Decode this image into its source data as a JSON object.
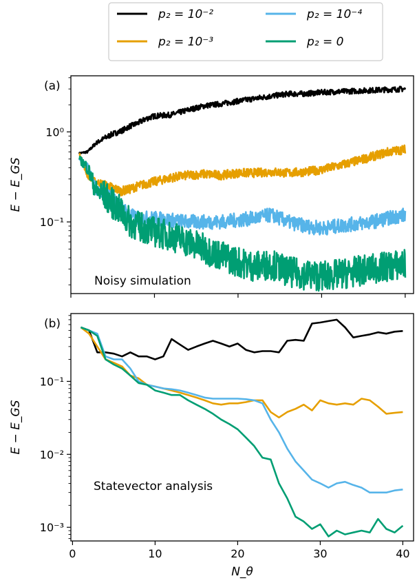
{
  "legend": {
    "entries": [
      {
        "label": "p₂ = 10⁻²",
        "color": "#000000"
      },
      {
        "label": "p₂ = 10⁻³",
        "color": "#E69F00"
      },
      {
        "label": "p₂ = 10⁻⁴",
        "color": "#56B4E9"
      },
      {
        "label": "p₂ = 0",
        "color": "#009E73"
      }
    ]
  },
  "chart_data": [
    {
      "type": "line",
      "panel_label": "(a)",
      "annotation": "Noisy simulation",
      "ylabel": "E − E_GS",
      "yscale": "log",
      "ylim": [
        0.016,
        4.2
      ],
      "xlim": [
        0,
        41
      ],
      "yticks": [
        {
          "value": 1,
          "label": "10⁰"
        },
        {
          "value": 0.1,
          "label": "10⁻¹"
        }
      ],
      "series": [
        {
          "name": "p₂ = 10⁻²",
          "color": "#000000",
          "x": [
            1,
            2,
            3,
            4,
            5,
            6,
            7,
            8,
            9,
            10,
            12,
            14,
            16,
            18,
            20,
            22,
            24,
            26,
            28,
            30,
            32,
            34,
            36,
            38,
            40
          ],
          "values": [
            0.58,
            0.6,
            0.75,
            0.85,
            0.95,
            1.02,
            1.15,
            1.25,
            1.4,
            1.5,
            1.55,
            1.75,
            1.95,
            2.05,
            2.2,
            2.35,
            2.5,
            2.65,
            2.65,
            2.75,
            2.8,
            2.85,
            2.9,
            2.95,
            3.0
          ]
        },
        {
          "name": "p₂ = 10⁻³",
          "color": "#E69F00",
          "x": [
            1,
            2,
            3,
            4,
            5,
            6,
            7,
            8,
            10,
            12,
            14,
            16,
            18,
            20,
            22,
            24,
            26,
            28,
            30,
            32,
            34,
            36,
            38,
            40
          ],
          "values": [
            0.58,
            0.32,
            0.28,
            0.26,
            0.24,
            0.22,
            0.23,
            0.25,
            0.28,
            0.31,
            0.33,
            0.34,
            0.33,
            0.35,
            0.35,
            0.36,
            0.35,
            0.36,
            0.38,
            0.42,
            0.47,
            0.53,
            0.6,
            0.64
          ]
        },
        {
          "name": "p₂ = 10⁻⁴",
          "color": "#56B4E9",
          "x": [
            1,
            2,
            3,
            4,
            5,
            6,
            7,
            8,
            10,
            12,
            14,
            16,
            18,
            20,
            22,
            24,
            26,
            28,
            30,
            32,
            34,
            36,
            38,
            40
          ],
          "values": [
            0.5,
            0.42,
            0.23,
            0.21,
            0.18,
            0.15,
            0.12,
            0.11,
            0.11,
            0.105,
            0.1,
            0.1,
            0.1,
            0.105,
            0.11,
            0.12,
            0.1,
            0.09,
            0.085,
            0.09,
            0.095,
            0.1,
            0.11,
            0.12
          ]
        },
        {
          "name": "p₂ = 0",
          "color": "#009E73",
          "x": [
            1,
            2,
            3,
            4,
            5,
            6,
            7,
            8,
            10,
            12,
            14,
            16,
            18,
            20,
            22,
            24,
            26,
            28,
            30,
            32,
            34,
            36,
            38,
            40
          ],
          "values": [
            0.5,
            0.4,
            0.22,
            0.2,
            0.16,
            0.13,
            0.1,
            0.09,
            0.078,
            0.07,
            0.06,
            0.05,
            0.042,
            0.036,
            0.032,
            0.034,
            0.028,
            0.026,
            0.025,
            0.026,
            0.028,
            0.03,
            0.032,
            0.034
          ]
        }
      ]
    },
    {
      "type": "line",
      "panel_label": "(b)",
      "annotation": "Statevector analysis",
      "xlabel": "N_θ",
      "ylabel": "E − E_GS",
      "yscale": "log",
      "ylim": [
        0.00065,
        0.85
      ],
      "xlim": [
        -0.2,
        41.3
      ],
      "xticks": [
        0,
        10,
        20,
        30,
        40
      ],
      "yticks": [
        {
          "value": 0.1,
          "label": "10⁻¹"
        },
        {
          "value": 0.01,
          "label": "10⁻²"
        },
        {
          "value": 0.001,
          "label": "10⁻³"
        }
      ],
      "series": [
        {
          "name": "p₂ = 10⁻²",
          "color": "#000000",
          "x": [
            1,
            2,
            3,
            4,
            5,
            6,
            7,
            8,
            9,
            10,
            11,
            12,
            13,
            14,
            15,
            16,
            17,
            18,
            19,
            20,
            21,
            22,
            23,
            24,
            25,
            26,
            27,
            28,
            29,
            30,
            31,
            32,
            33,
            34,
            35,
            36,
            37,
            38,
            39,
            40
          ],
          "values": [
            0.55,
            0.5,
            0.25,
            0.25,
            0.24,
            0.22,
            0.25,
            0.22,
            0.22,
            0.2,
            0.22,
            0.38,
            0.32,
            0.27,
            0.3,
            0.33,
            0.36,
            0.33,
            0.3,
            0.33,
            0.27,
            0.25,
            0.26,
            0.26,
            0.25,
            0.36,
            0.37,
            0.36,
            0.62,
            0.64,
            0.67,
            0.7,
            0.55,
            0.4,
            0.42,
            0.44,
            0.47,
            0.45,
            0.48,
            0.49
          ]
        },
        {
          "name": "p₂ = 10⁻³",
          "color": "#E69F00",
          "x": [
            1,
            2,
            3,
            4,
            5,
            6,
            7,
            8,
            9,
            10,
            11,
            12,
            13,
            14,
            15,
            16,
            17,
            18,
            19,
            20,
            21,
            22,
            23,
            24,
            25,
            26,
            27,
            28,
            29,
            30,
            31,
            32,
            33,
            34,
            35,
            36,
            37,
            38,
            39,
            40
          ],
          "values": [
            0.55,
            0.45,
            0.3,
            0.2,
            0.18,
            0.16,
            0.12,
            0.11,
            0.09,
            0.085,
            0.08,
            0.075,
            0.07,
            0.065,
            0.06,
            0.055,
            0.05,
            0.048,
            0.05,
            0.05,
            0.052,
            0.055,
            0.055,
            0.038,
            0.032,
            0.038,
            0.042,
            0.048,
            0.04,
            0.055,
            0.05,
            0.048,
            0.05,
            0.048,
            0.058,
            0.055,
            0.045,
            0.036,
            0.037,
            0.038
          ]
        },
        {
          "name": "p₂ = 10⁻⁴",
          "color": "#56B4E9",
          "x": [
            1,
            2,
            3,
            4,
            5,
            6,
            7,
            8,
            9,
            10,
            11,
            12,
            13,
            14,
            15,
            16,
            17,
            18,
            19,
            20,
            21,
            22,
            23,
            24,
            25,
            26,
            27,
            28,
            29,
            30,
            31,
            32,
            33,
            34,
            35,
            36,
            37,
            38,
            39,
            40
          ],
          "values": [
            0.55,
            0.5,
            0.45,
            0.22,
            0.2,
            0.2,
            0.15,
            0.1,
            0.09,
            0.085,
            0.08,
            0.078,
            0.075,
            0.07,
            0.065,
            0.06,
            0.058,
            0.058,
            0.058,
            0.058,
            0.057,
            0.055,
            0.05,
            0.03,
            0.02,
            0.012,
            0.008,
            0.006,
            0.0045,
            0.004,
            0.0035,
            0.004,
            0.0042,
            0.0038,
            0.0035,
            0.003,
            0.003,
            0.003,
            0.0032,
            0.0033
          ]
        },
        {
          "name": "p₂ = 0",
          "color": "#009E73",
          "x": [
            1,
            2,
            3,
            4,
            5,
            6,
            7,
            8,
            9,
            10,
            11,
            12,
            13,
            14,
            15,
            16,
            17,
            18,
            19,
            20,
            21,
            22,
            23,
            24,
            25,
            26,
            27,
            28,
            29,
            30,
            31,
            32,
            33,
            34,
            35,
            36,
            37,
            38,
            39,
            40
          ],
          "values": [
            0.55,
            0.5,
            0.42,
            0.2,
            0.17,
            0.15,
            0.12,
            0.095,
            0.09,
            0.075,
            0.07,
            0.065,
            0.065,
            0.055,
            0.048,
            0.042,
            0.036,
            0.03,
            0.026,
            0.022,
            0.017,
            0.013,
            0.009,
            0.0085,
            0.004,
            0.0025,
            0.0014,
            0.0012,
            0.00095,
            0.0011,
            0.00075,
            0.0009,
            0.0008,
            0.00085,
            0.0009,
            0.00085,
            0.0013,
            0.00095,
            0.00085,
            0.00105
          ]
        }
      ]
    }
  ]
}
